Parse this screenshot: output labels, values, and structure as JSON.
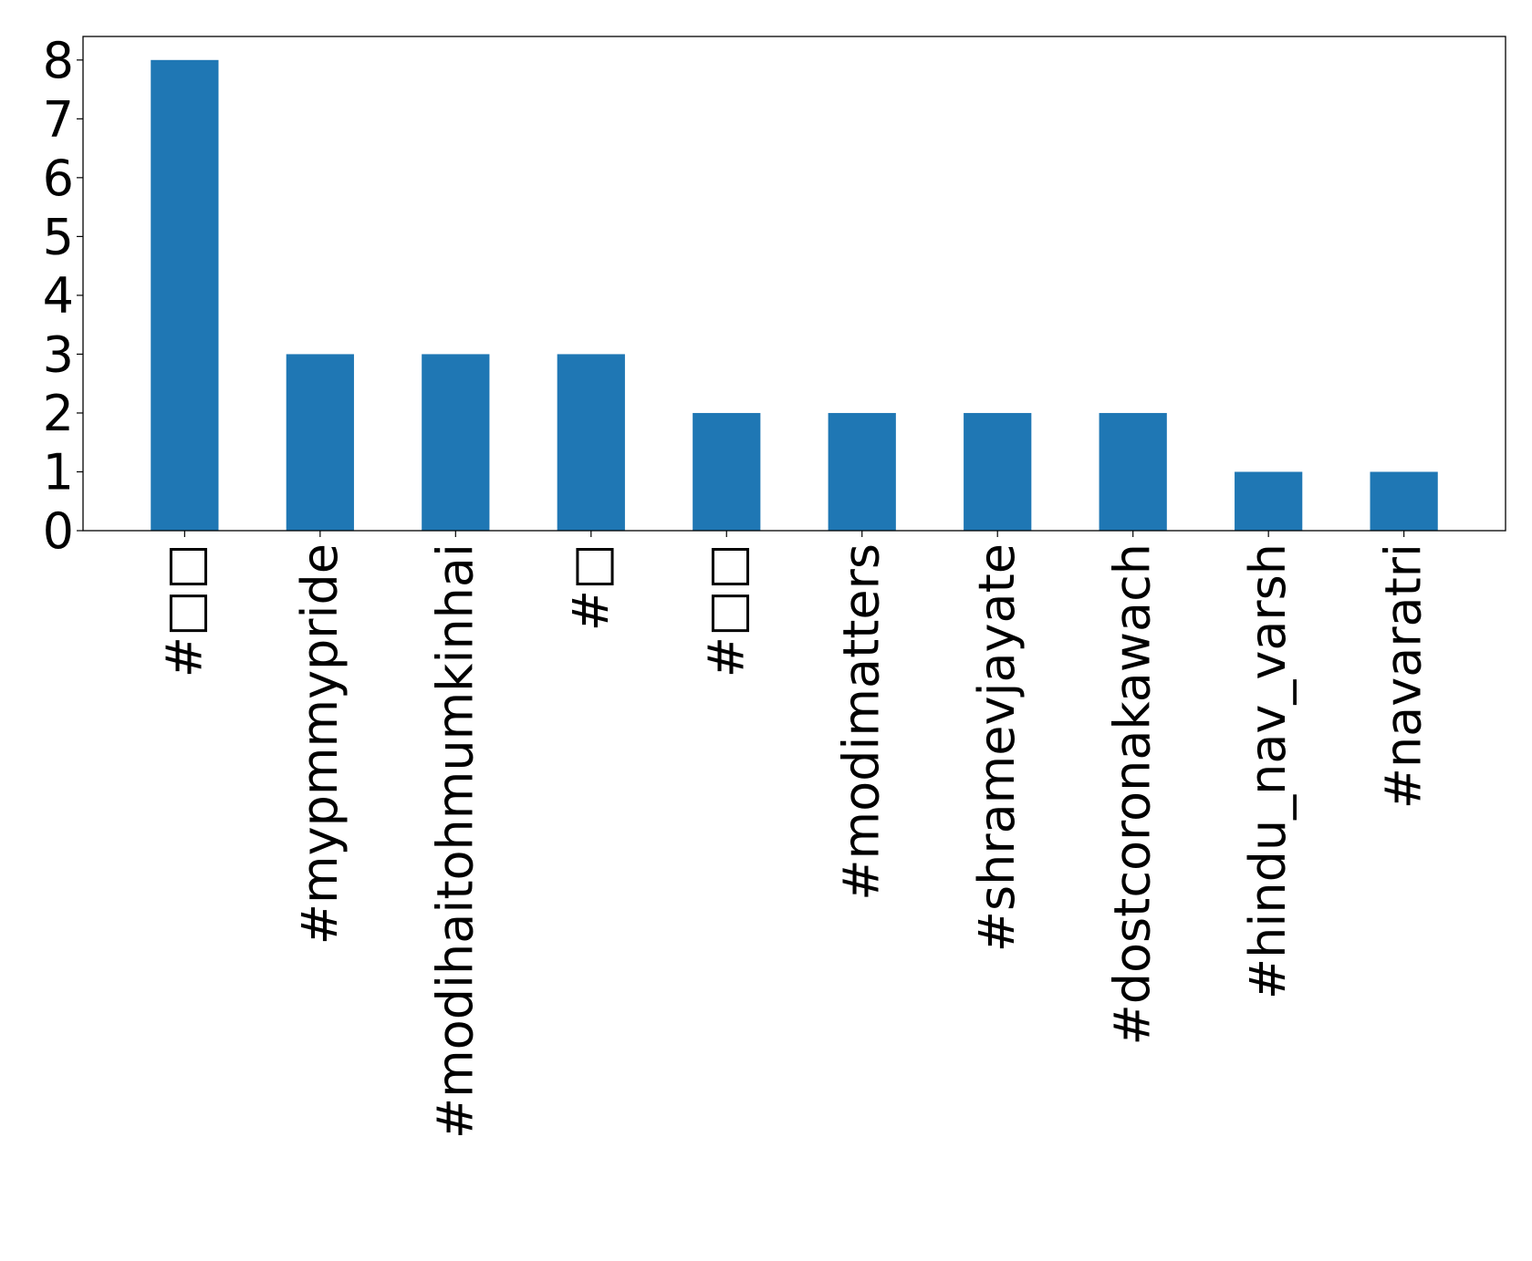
{
  "chart_data": {
    "type": "bar",
    "title": "",
    "xlabel": "",
    "ylabel": "",
    "categories": [
      "#□□",
      "#mypmmypride",
      "#modihaitohmumkinhai",
      "#□",
      "#□□",
      "#modimatters",
      "#shramevjayate",
      "#dostcoronakawach",
      "#hindu_nav_varsh",
      "#navaratri"
    ],
    "values": [
      8,
      3,
      3,
      3,
      2,
      2,
      2,
      2,
      1,
      1
    ],
    "ylim": [
      0,
      8.4
    ],
    "yticks": [
      "0",
      "1",
      "2",
      "3",
      "4",
      "5",
      "6",
      "7",
      "8"
    ],
    "xtick_rotation": "vertical",
    "grid": false,
    "legend": "none",
    "bar_color": "#1f77b4"
  }
}
